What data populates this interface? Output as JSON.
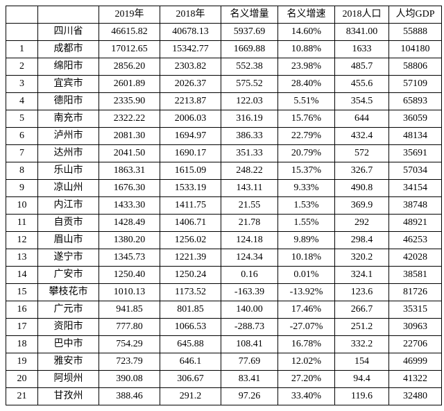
{
  "table": {
    "type": "table",
    "columns": [
      "",
      "",
      "2019年",
      "2018年",
      "名义增量",
      "名义增速",
      "2018人口",
      "人均GDP"
    ],
    "col_align": [
      "center",
      "center",
      "center",
      "center",
      "center",
      "center",
      "center",
      "center"
    ],
    "border_color": "#000000",
    "background_color": "#ffffff",
    "text_color": "#000000",
    "font_size_pt": 10,
    "province_row": [
      "",
      "四川省",
      "46615.82",
      "40678.13",
      "5937.69",
      "14.60%",
      "8341.00",
      "55888"
    ],
    "rows": [
      [
        "1",
        "成都市",
        "17012.65",
        "15342.77",
        "1669.88",
        "10.88%",
        "1633",
        "104180"
      ],
      [
        "2",
        "绵阳市",
        "2856.20",
        "2303.82",
        "552.38",
        "23.98%",
        "485.7",
        "58806"
      ],
      [
        "3",
        "宜宾市",
        "2601.89",
        "2026.37",
        "575.52",
        "28.40%",
        "455.6",
        "57109"
      ],
      [
        "4",
        "德阳市",
        "2335.90",
        "2213.87",
        "122.03",
        "5.51%",
        "354.5",
        "65893"
      ],
      [
        "5",
        "南充市",
        "2322.22",
        "2006.03",
        "316.19",
        "15.76%",
        "644",
        "36059"
      ],
      [
        "6",
        "泸州市",
        "2081.30",
        "1694.97",
        "386.33",
        "22.79%",
        "432.4",
        "48134"
      ],
      [
        "7",
        "达州市",
        "2041.50",
        "1690.17",
        "351.33",
        "20.79%",
        "572",
        "35691"
      ],
      [
        "8",
        "乐山市",
        "1863.31",
        "1615.09",
        "248.22",
        "15.37%",
        "326.7",
        "57034"
      ],
      [
        "9",
        "凉山州",
        "1676.30",
        "1533.19",
        "143.11",
        "9.33%",
        "490.8",
        "34154"
      ],
      [
        "10",
        "内江市",
        "1433.30",
        "1411.75",
        "21.55",
        "1.53%",
        "369.9",
        "38748"
      ],
      [
        "11",
        "自贡市",
        "1428.49",
        "1406.71",
        "21.78",
        "1.55%",
        "292",
        "48921"
      ],
      [
        "12",
        "眉山市",
        "1380.20",
        "1256.02",
        "124.18",
        "9.89%",
        "298.4",
        "46253"
      ],
      [
        "13",
        "遂宁市",
        "1345.73",
        "1221.39",
        "124.34",
        "10.18%",
        "320.2",
        "42028"
      ],
      [
        "14",
        "广安市",
        "1250.40",
        "1250.24",
        "0.16",
        "0.01%",
        "324.1",
        "38581"
      ],
      [
        "15",
        "攀枝花市",
        "1010.13",
        "1173.52",
        "-163.39",
        "-13.92%",
        "123.6",
        "81726"
      ],
      [
        "16",
        "广元市",
        "941.85",
        "801.85",
        "140.00",
        "17.46%",
        "266.7",
        "35315"
      ],
      [
        "17",
        "资阳市",
        "777.80",
        "1066.53",
        "-288.73",
        "-27.07%",
        "251.2",
        "30963"
      ],
      [
        "18",
        "巴中市",
        "754.29",
        "645.88",
        "108.41",
        "16.78%",
        "332.2",
        "22706"
      ],
      [
        "19",
        "雅安市",
        "723.79",
        "646.1",
        "77.69",
        "12.02%",
        "154",
        "46999"
      ],
      [
        "20",
        "阿坝州",
        "390.08",
        "306.67",
        "83.41",
        "27.20%",
        "94.4",
        "41322"
      ],
      [
        "21",
        "甘孜州",
        "388.46",
        "291.2",
        "97.26",
        "33.40%",
        "119.6",
        "32480"
      ]
    ]
  }
}
